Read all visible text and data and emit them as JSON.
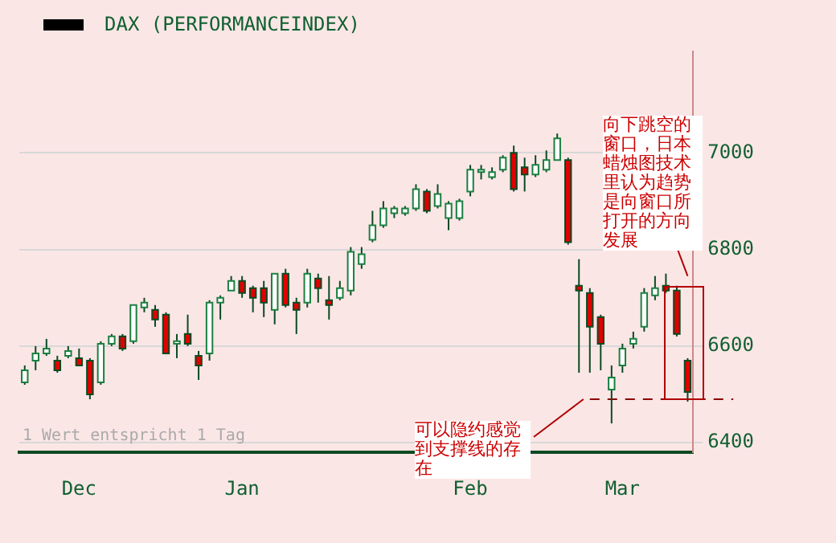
{
  "chart_data": {
    "type": "candlestick",
    "title": "DAX (PERFORMANCEINDEX)",
    "categories": [
      null,
      null,
      null,
      null,
      null,
      "Dec",
      null,
      null,
      null,
      null,
      null,
      null,
      null,
      null,
      null,
      null,
      null,
      null,
      null,
      null,
      "Jan",
      null,
      null,
      null,
      null,
      null,
      null,
      null,
      null,
      null,
      null,
      null,
      null,
      null,
      null,
      null,
      null,
      null,
      null,
      null,
      null,
      "Feb",
      null,
      null,
      null,
      null,
      null,
      null,
      null,
      null,
      null,
      null,
      null,
      null,
      null,
      "Mar",
      null,
      null,
      null,
      null,
      null,
      null
    ],
    "ohlc": [
      [
        6525,
        6560,
        6520,
        6550
      ],
      [
        6570,
        6600,
        6550,
        6585
      ],
      [
        6585,
        6615,
        6580,
        6595
      ],
      [
        6570,
        6580,
        6545,
        6550
      ],
      [
        6580,
        6600,
        6575,
        6590
      ],
      [
        6575,
        6595,
        6560,
        6560
      ],
      [
        6570,
        6575,
        6490,
        6500
      ],
      [
        6525,
        6610,
        6520,
        6605
      ],
      [
        6605,
        6625,
        6600,
        6620
      ],
      [
        6620,
        6625,
        6590,
        6595
      ],
      [
        6610,
        6685,
        6605,
        6685
      ],
      [
        6680,
        6700,
        6670,
        6690
      ],
      [
        6675,
        6685,
        6640,
        6655
      ],
      [
        6665,
        6670,
        6585,
        6585
      ],
      [
        6605,
        6625,
        6575,
        6610
      ],
      [
        6625,
        6665,
        6600,
        6605
      ],
      [
        6580,
        6590,
        6530,
        6560
      ],
      [
        6585,
        6695,
        6570,
        6690
      ],
      [
        6690,
        6705,
        6655,
        6700
      ],
      [
        6715,
        6745,
        6715,
        6735
      ],
      [
        6735,
        6745,
        6700,
        6710
      ],
      [
        6720,
        6725,
        6670,
        6700
      ],
      [
        6720,
        6735,
        6660,
        6690
      ],
      [
        6675,
        6750,
        6645,
        6750
      ],
      [
        6750,
        6760,
        6680,
        6685
      ],
      [
        6690,
        6700,
        6625,
        6675
      ],
      [
        6690,
        6760,
        6680,
        6750
      ],
      [
        6740,
        6750,
        6690,
        6720
      ],
      [
        6695,
        6745,
        6655,
        6685
      ],
      [
        6700,
        6735,
        6695,
        6720
      ],
      [
        6715,
        6805,
        6705,
        6795
      ],
      [
        6770,
        6805,
        6760,
        6790
      ],
      [
        6820,
        6880,
        6815,
        6850
      ],
      [
        6850,
        6900,
        6845,
        6885
      ],
      [
        6875,
        6890,
        6865,
        6885
      ],
      [
        6875,
        6890,
        6870,
        6885
      ],
      [
        6885,
        6935,
        6880,
        6925
      ],
      [
        6920,
        6925,
        6875,
        6880
      ],
      [
        6890,
        6935,
        6885,
        6915
      ],
      [
        6865,
        6900,
        6840,
        6895
      ],
      [
        6865,
        6905,
        6860,
        6900
      ],
      [
        6920,
        6975,
        6910,
        6965
      ],
      [
        6960,
        6975,
        6945,
        6965
      ],
      [
        6950,
        6970,
        6945,
        6960
      ],
      [
        6965,
        6995,
        6960,
        6990
      ],
      [
        7000,
        7015,
        6920,
        6925
      ],
      [
        6970,
        6990,
        6920,
        6955
      ],
      [
        6955,
        6995,
        6950,
        6975
      ],
      [
        6965,
        7005,
        6960,
        6985
      ],
      [
        6985,
        7040,
        6985,
        7030
      ],
      [
        6985,
        6990,
        6810,
        6815
      ],
      [
        6725,
        6780,
        6545,
        6715
      ],
      [
        6710,
        6720,
        6545,
        6640
      ],
      [
        6660,
        6665,
        6550,
        6605
      ],
      [
        6510,
        6560,
        6440,
        6535
      ],
      [
        6560,
        6605,
        6545,
        6595
      ],
      [
        6605,
        6630,
        6595,
        6615
      ],
      [
        6640,
        6720,
        6630,
        6710
      ],
      [
        6705,
        6745,
        6695,
        6720
      ],
      [
        6725,
        6750,
        6710,
        6715
      ],
      [
        6715,
        6725,
        6620,
        6625
      ],
      [
        6570,
        6575,
        6485,
        6505
      ]
    ],
    "ylim": [
      6380,
      7210
    ],
    "yticks": [
      6400,
      6600,
      6800,
      7000
    ],
    "grid": "y",
    "legend": false,
    "ref_lines": [
      {
        "axis": "y",
        "value": 6490,
        "color": "#8b0000",
        "line_style": "dashed",
        "label": "可以隐约感觉到支撑线的存在"
      }
    ],
    "annotations": [
      {
        "text": "向下跳空的窗口，日本蜡烛图技术里认为趋势是向窗口所打开的方向发展",
        "y": 6725
      },
      "1 Wert entspricht 1 Tag"
    ]
  }
}
